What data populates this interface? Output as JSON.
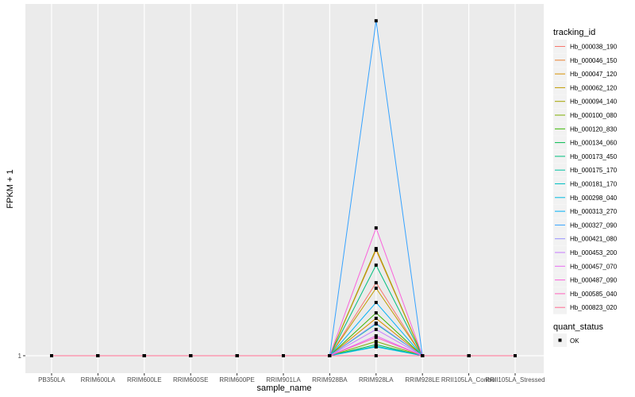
{
  "chart_data": {
    "type": "line",
    "xlabel": "sample_name",
    "ylabel": "FPKM + 1",
    "y_ticks": [
      "1"
    ],
    "ylim": [
      0,
      21
    ],
    "grid": true,
    "legend_placement": "right",
    "categories": [
      "PB350LA",
      "RRIM600LA",
      "RRIM600LE",
      "RRIM600SE",
      "RRIM600PE",
      "RRIM901LA",
      "RRIM928BA",
      "RRIM928LA",
      "RRIM928LE",
      "RRII105LA_Control",
      "RRII105LA_Stressed"
    ],
    "legend_title": "tracking_id",
    "series": [
      {
        "name": "Hb_000038_190",
        "color": "#F8766D",
        "peak": 5.14
      },
      {
        "name": "Hb_000046_150",
        "color": "#EA8331",
        "peak": 6.99
      },
      {
        "name": "Hb_000047_120",
        "color": "#D89000",
        "peak": 3.12
      },
      {
        "name": "Hb_000062_120",
        "color": "#C09B00",
        "peak": 4.83
      },
      {
        "name": "Hb_000094_140",
        "color": "#A3A500",
        "peak": 7.08
      },
      {
        "name": "Hb_000100_080",
        "color": "#7CAE00",
        "peak": 1.81
      },
      {
        "name": "Hb_000120_830",
        "color": "#39B600",
        "peak": 3.43
      },
      {
        "name": "Hb_000134_060",
        "color": "#00BB4E",
        "peak": 1.63
      },
      {
        "name": "Hb_000173_450",
        "color": "#00BF7D",
        "peak": 6.14
      },
      {
        "name": "Hb_000175_170",
        "color": "#00C1A3",
        "peak": 2.8
      },
      {
        "name": "Hb_000181_170",
        "color": "#00BFC4",
        "peak": 1.54
      },
      {
        "name": "Hb_000298_040",
        "color": "#00BAE0",
        "peak": 1.5
      },
      {
        "name": "Hb_000313_270",
        "color": "#00B0F6",
        "peak": 4.02
      },
      {
        "name": "Hb_000327_090",
        "color": "#35A2FF",
        "peak": 20.0
      },
      {
        "name": "Hb_000421_080",
        "color": "#9590FF",
        "peak": 2.85
      },
      {
        "name": "Hb_000453_200",
        "color": "#C77CFF",
        "peak": 2.49
      },
      {
        "name": "Hb_000457_070",
        "color": "#E76BF3",
        "peak": 2.13
      },
      {
        "name": "Hb_000487_090",
        "color": "#FA62DB",
        "peak": 8.25
      },
      {
        "name": "Hb_000585_040",
        "color": "#FF62BC",
        "peak": 2.04
      },
      {
        "name": "Hb_000823_020",
        "color": "#FF6C91",
        "peak": 1.0
      }
    ],
    "peak_category": "RRIM928LA",
    "baseline_value": 1,
    "shape_legend": {
      "title": "quant_status",
      "items": [
        "OK"
      ]
    }
  }
}
